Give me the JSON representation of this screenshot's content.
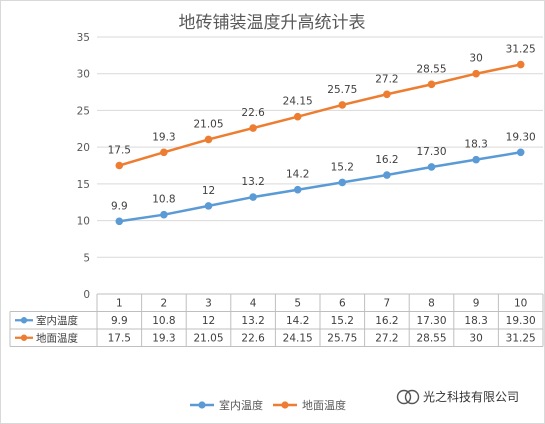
{
  "chart_data": {
    "type": "line",
    "title": "地砖铺装温度升高统计表",
    "categories": [
      "1",
      "2",
      "3",
      "4",
      "5",
      "6",
      "7",
      "8",
      "9",
      "10"
    ],
    "ylim": [
      0,
      35
    ],
    "yticks": [
      "0",
      "5",
      "10",
      "15",
      "20",
      "25",
      "30",
      "35"
    ],
    "grid": true,
    "legend_position": "bottom",
    "data_table": true,
    "series": [
      {
        "name": "室内温度",
        "color": "#5b9bd5",
        "values": [
          9.9,
          10.8,
          12,
          13.2,
          14.2,
          15.2,
          16.2,
          17.3,
          18.3,
          19.3
        ],
        "labels": [
          "9.9",
          "10.8",
          "12",
          "13.2",
          "14.2",
          "15.2",
          "16.2",
          "17.30",
          "18.3",
          "19.30"
        ]
      },
      {
        "name": "地面温度",
        "color": "#ed7d31",
        "values": [
          17.5,
          19.3,
          21.05,
          22.6,
          24.15,
          25.75,
          27.2,
          28.55,
          30,
          31.25
        ],
        "labels": [
          "17.5",
          "19.3",
          "21.05",
          "22.6",
          "24.15",
          "25.75",
          "27.2",
          "28.55",
          "30",
          "31.25"
        ]
      }
    ]
  },
  "watermark": {
    "text": "光之科技有限公司",
    "icon": "wechat-channel-icon"
  }
}
